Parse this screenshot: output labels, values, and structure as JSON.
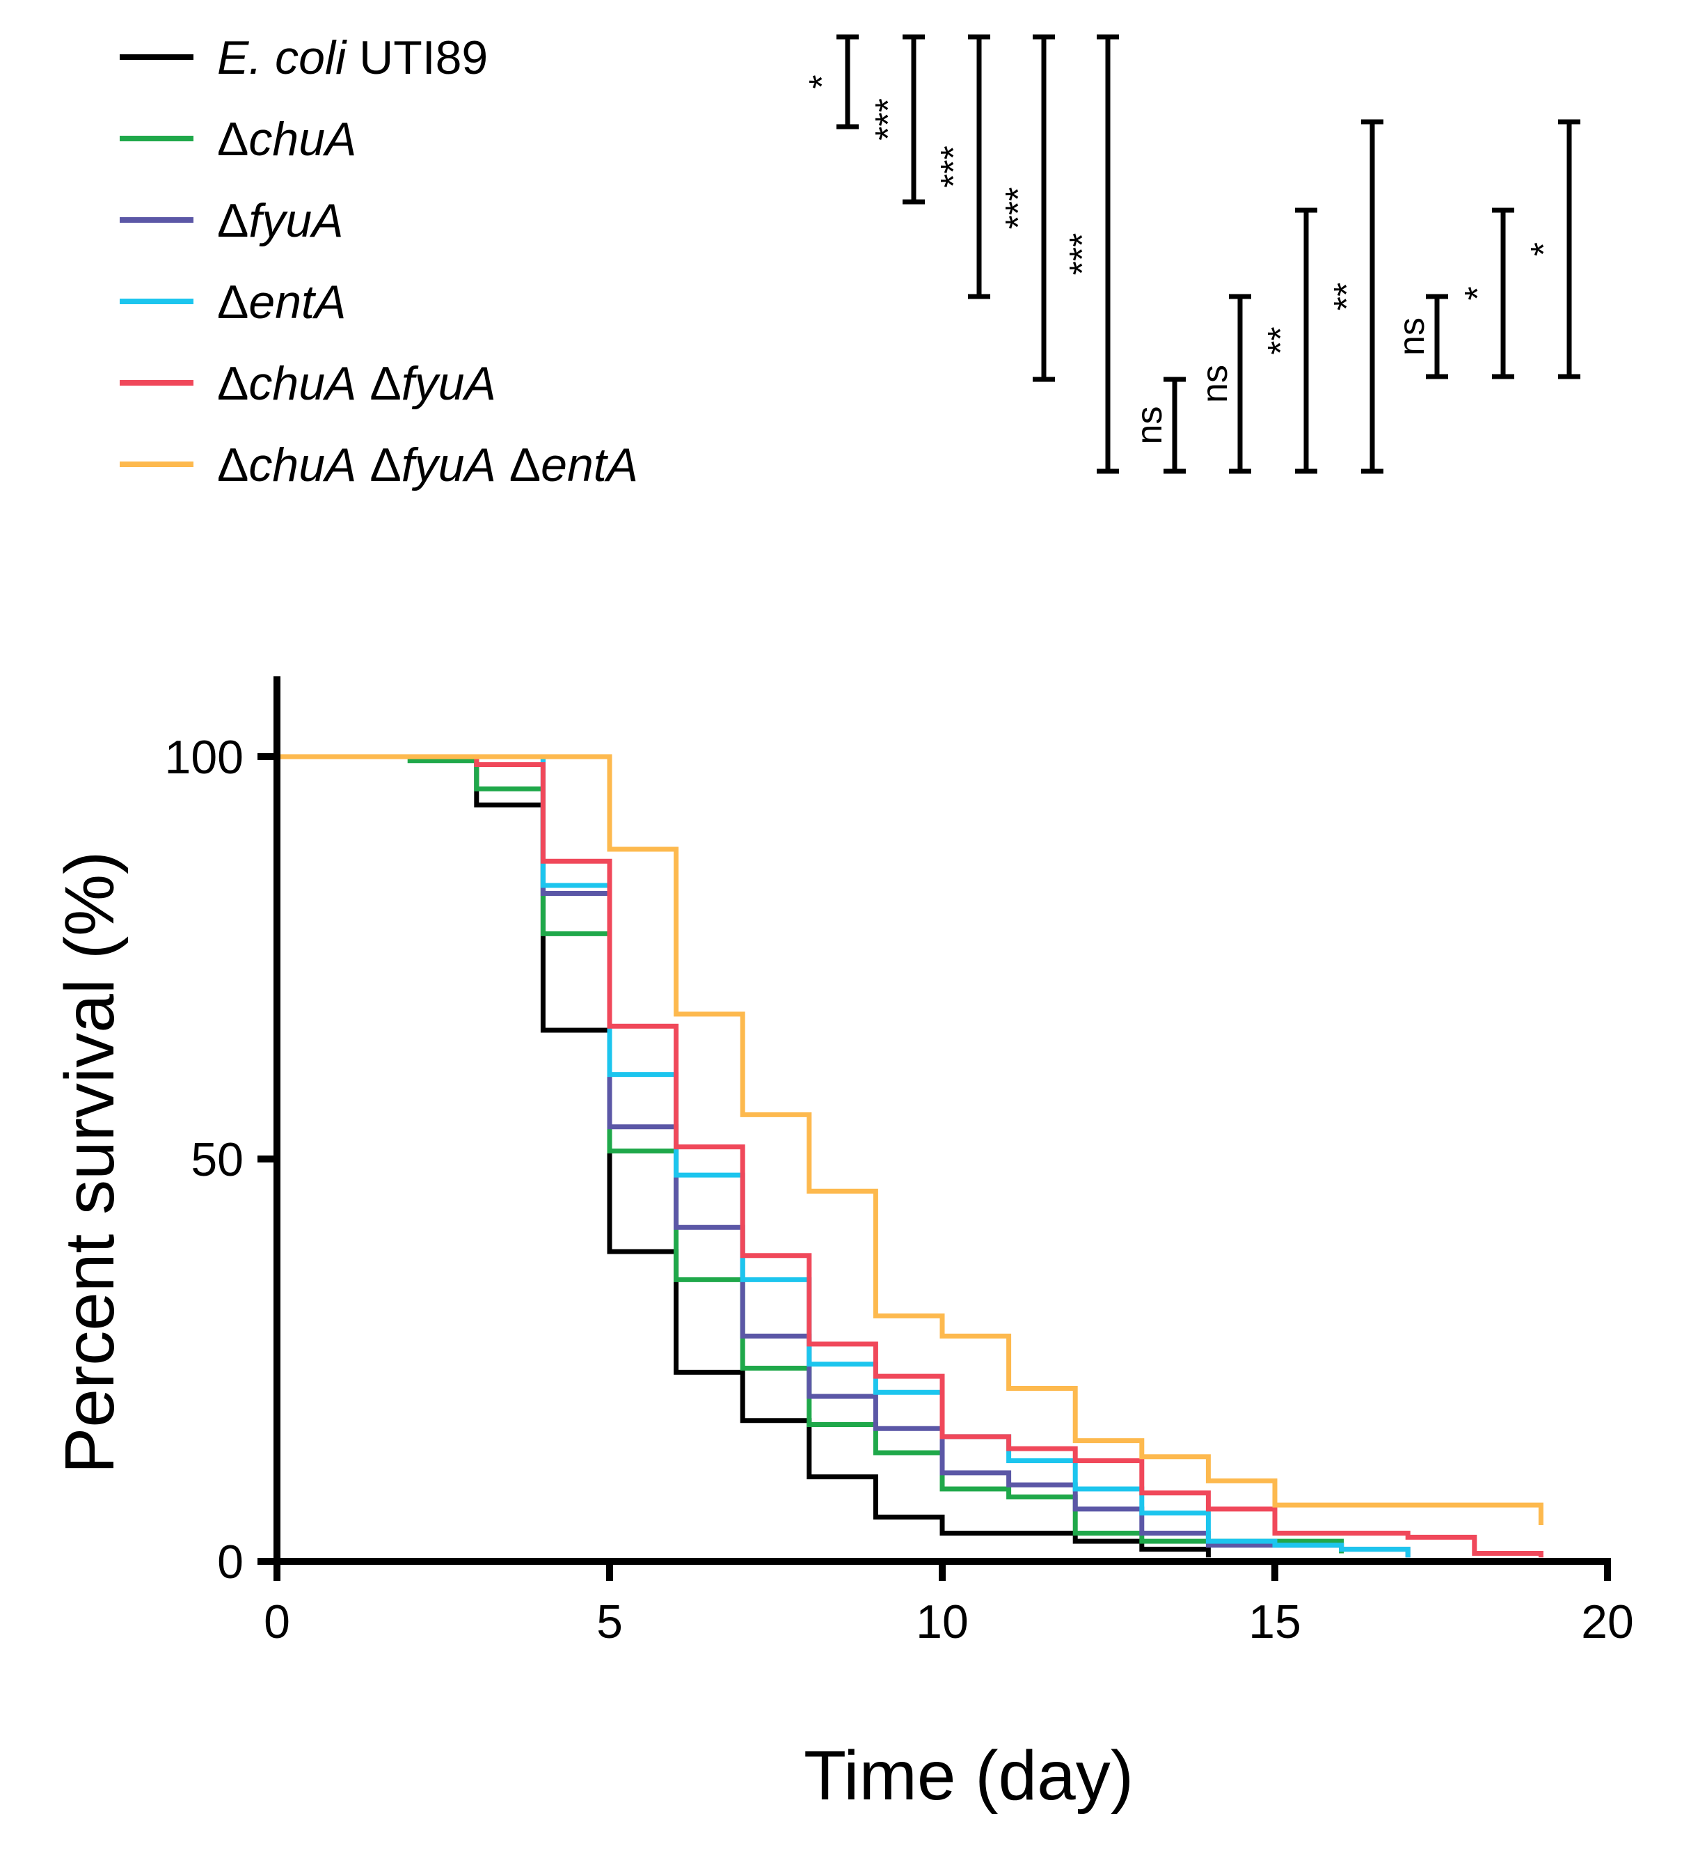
{
  "chart_data": {
    "type": "line",
    "step": true,
    "xlabel": "Time (day)",
    "ylabel": "Percent survival (%)",
    "xlim": [
      0,
      20
    ],
    "ylim": [
      0,
      110
    ],
    "xticks": [
      "0",
      "5",
      "10",
      "15",
      "20"
    ],
    "yticks": [
      "0",
      "50",
      "100"
    ],
    "grid": false,
    "legend_position": "top-left",
    "series": [
      {
        "name": "E. coli UTI89",
        "name_parts": [
          {
            "text": "E. coli",
            "italic": true
          },
          {
            "text": " UTI89",
            "italic": false
          }
        ],
        "color": "#000000",
        "x": [
          0,
          3,
          4,
          5,
          6,
          7,
          8,
          9,
          10,
          12,
          13,
          14
        ],
        "y": [
          100,
          94,
          66,
          38.5,
          23.5,
          17.5,
          10.5,
          5.5,
          3.5,
          2.5,
          1.5,
          0.5
        ]
      },
      {
        "name": "ΔchuA",
        "name_parts": [
          {
            "text": "Δ",
            "italic": false
          },
          {
            "text": "chuA",
            "italic": true
          }
        ],
        "color": "#1fa84a",
        "x": [
          0,
          2,
          3,
          4,
          5,
          6,
          7,
          8,
          9,
          10,
          11,
          12,
          13,
          14,
          15,
          16
        ],
        "y": [
          100,
          99.5,
          96,
          78,
          51,
          35,
          24,
          17,
          13.5,
          9,
          8,
          3.5,
          2.5,
          2.5,
          2.5,
          1
        ]
      },
      {
        "name": "ΔfyuA",
        "name_parts": [
          {
            "text": "Δ",
            "italic": false
          },
          {
            "text": "fyuA",
            "italic": true
          }
        ],
        "color": "#5b57a6",
        "x": [
          0,
          3,
          4,
          5,
          6,
          7,
          8,
          9,
          10,
          11,
          12,
          13,
          14,
          15,
          16,
          17
        ],
        "y": [
          100,
          100,
          83,
          54,
          41.5,
          28,
          20.5,
          16.5,
          11,
          9.5,
          6.5,
          3.5,
          2,
          2,
          1.5,
          0.5
        ]
      },
      {
        "name": "ΔentA",
        "name_parts": [
          {
            "text": "Δ",
            "italic": false
          },
          {
            "text": "entA",
            "italic": true
          }
        ],
        "color": "#1cc5ee",
        "x": [
          0,
          3,
          4,
          5,
          6,
          7,
          8,
          9,
          10,
          11,
          12,
          13,
          14,
          15,
          16,
          17
        ],
        "y": [
          100,
          100,
          84,
          60.5,
          48,
          35,
          24.5,
          21,
          15.5,
          12.5,
          9,
          6,
          2.5,
          2,
          1.5,
          0.5
        ]
      },
      {
        "name": "ΔchuA ΔfyuA",
        "name_parts": [
          {
            "text": "Δ",
            "italic": false
          },
          {
            "text": "chuA",
            "italic": true
          },
          {
            "text": " Δ",
            "italic": false
          },
          {
            "text": "fyuA",
            "italic": true
          }
        ],
        "color": "#f0485a",
        "x": [
          0,
          3,
          4,
          5,
          6,
          7,
          8,
          9,
          10,
          11,
          12,
          13,
          14,
          15,
          17,
          18,
          19
        ],
        "y": [
          100,
          99,
          87,
          66.5,
          51.5,
          38,
          27,
          23,
          15.5,
          14,
          12.5,
          8.5,
          6.5,
          3.5,
          3,
          1,
          0.5
        ]
      },
      {
        "name": "ΔchuA ΔfyuA ΔentA",
        "name_parts": [
          {
            "text": "Δ",
            "italic": false
          },
          {
            "text": "chuA",
            "italic": true
          },
          {
            "text": " Δ",
            "italic": false
          },
          {
            "text": "fyuA",
            "italic": true
          },
          {
            "text": " Δ",
            "italic": false
          },
          {
            "text": "entA",
            "italic": true
          }
        ],
        "color": "#fdb94e",
        "x": [
          0,
          4,
          5,
          6,
          7,
          8,
          9,
          10,
          11,
          12,
          13,
          14,
          15,
          19
        ],
        "y": [
          100,
          100,
          88.5,
          68,
          55.5,
          46,
          30.5,
          28,
          21.5,
          15,
          13,
          10,
          7,
          4.5
        ]
      }
    ],
    "significance": [
      {
        "label": "*"
      },
      {
        "label": "***"
      },
      {
        "label": "***"
      },
      {
        "label": "***"
      },
      {
        "label": "***"
      },
      {
        "label": "ns"
      },
      {
        "label": "ns"
      },
      {
        "label": "**"
      },
      {
        "label": "**"
      },
      {
        "label": "ns"
      },
      {
        "label": "*"
      },
      {
        "label": "*"
      }
    ]
  }
}
